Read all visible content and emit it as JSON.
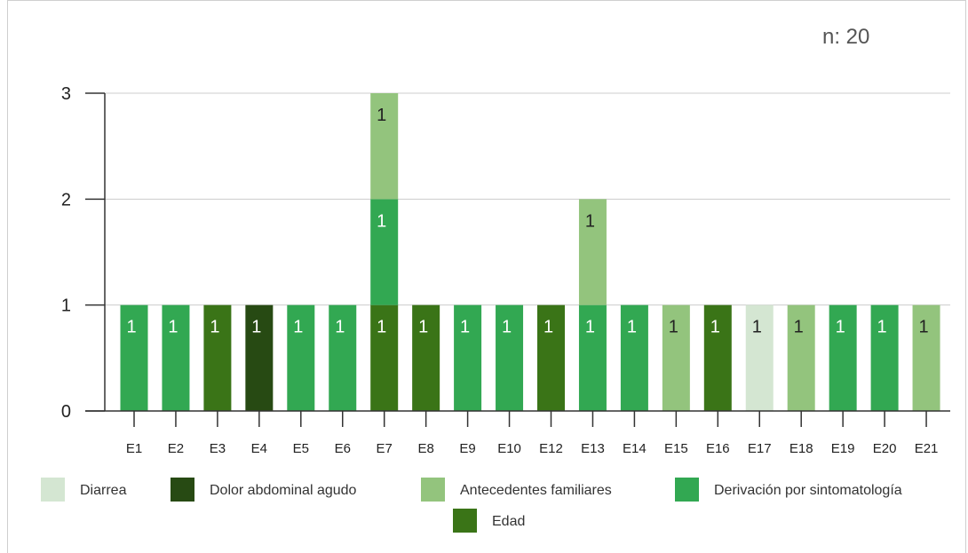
{
  "header": {
    "n_label": "n: 20"
  },
  "chart_data": {
    "type": "bar",
    "stacked": true,
    "categories": [
      "E1",
      "E2",
      "E3",
      "E4",
      "E5",
      "E6",
      "E7",
      "E8",
      "E9",
      "E10",
      "E12",
      "E13",
      "E14",
      "E15",
      "E16",
      "E17",
      "E18",
      "E19",
      "E20",
      "E21"
    ],
    "series": [
      {
        "name": "Diarrea",
        "color": "#d4e6d2",
        "values": [
          0,
          0,
          0,
          0,
          0,
          0,
          0,
          0,
          0,
          0,
          0,
          0,
          0,
          0,
          0,
          1,
          0,
          0,
          0,
          0
        ]
      },
      {
        "name": "Dolor abdominal agudo",
        "color": "#274a13",
        "values": [
          0,
          0,
          0,
          1,
          0,
          0,
          0,
          0,
          0,
          0,
          0,
          0,
          0,
          0,
          0,
          0,
          0,
          0,
          0,
          0
        ]
      },
      {
        "name": "Edad",
        "color": "#3a7417",
        "values": [
          0,
          0,
          1,
          0,
          0,
          0,
          1,
          1,
          0,
          0,
          1,
          0,
          0,
          0,
          1,
          0,
          0,
          0,
          0,
          0
        ]
      },
      {
        "name": "Derivación por sintomatología",
        "color": "#32a852",
        "values": [
          1,
          1,
          0,
          0,
          1,
          1,
          1,
          0,
          1,
          1,
          0,
          1,
          1,
          0,
          0,
          0,
          0,
          1,
          1,
          0
        ]
      },
      {
        "name": "Antecedentes familiares",
        "color": "#93c47d",
        "values": [
          0,
          0,
          0,
          0,
          0,
          0,
          1,
          0,
          0,
          0,
          0,
          1,
          0,
          1,
          0,
          0,
          1,
          0,
          0,
          1
        ]
      }
    ],
    "legend_order": [
      "Diarrea",
      "Dolor abdominal agudo",
      "Antecedentes familiares",
      "Derivación por sintomatología",
      "Edad"
    ],
    "ylim": [
      0,
      3
    ],
    "yticks": [
      0,
      1,
      2,
      3
    ],
    "grid": true,
    "legend_position": "bottom",
    "data_labels": true
  }
}
